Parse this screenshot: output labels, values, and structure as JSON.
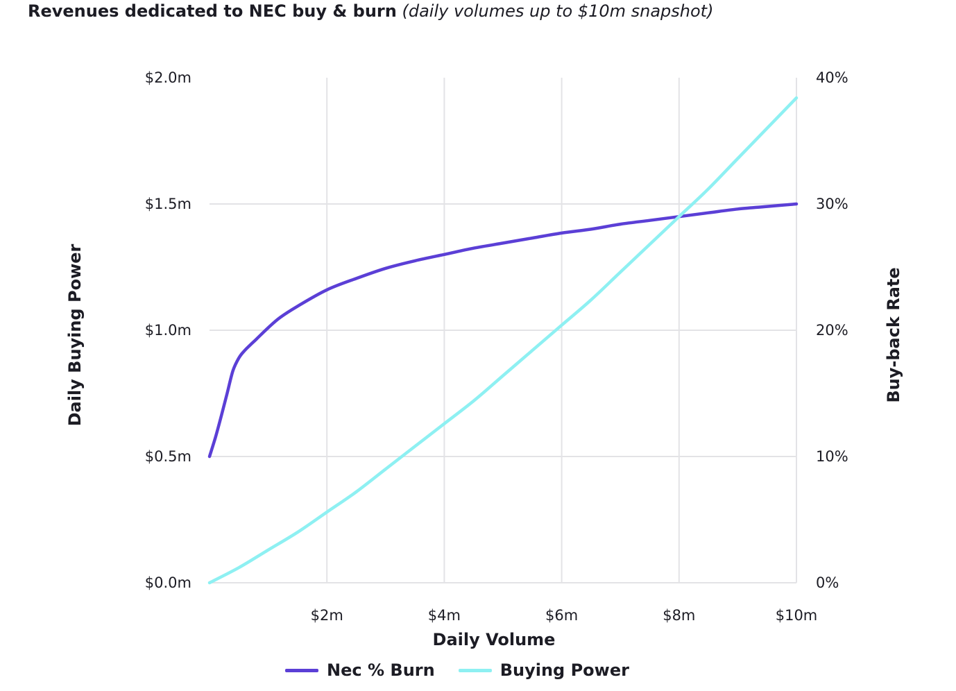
{
  "title": "Revenues dedicated to NEC buy & burn",
  "subtitle": "(daily volumes up to $10m snapshot)",
  "colors": {
    "nec_burn": "#5b3fd6",
    "buying_power": "#8ef0f2",
    "grid": "#e3e3e6"
  },
  "chart_data": {
    "type": "line",
    "xlabel": "Daily Volume",
    "ylabel": "Daily Buying Power",
    "y2label": "Buy-back Rate",
    "x_ticks": [
      "$2m",
      "$4m",
      "$6m",
      "$8m",
      "$10m"
    ],
    "y_ticks": [
      "$0.0m",
      "$0.5m",
      "$1.0m",
      "$1.5m",
      "$2.0m"
    ],
    "y2_ticks": [
      "0%",
      "10%",
      "20%",
      "30%",
      "40%"
    ],
    "xlim": [
      0,
      10
    ],
    "ylim": [
      0,
      2.0
    ],
    "y2lim": [
      0,
      40
    ],
    "grid": true,
    "legend": "bottom",
    "series": [
      {
        "name": "Nec % Burn",
        "axis": "right",
        "unit": "%",
        "x": [
          0.0,
          0.1,
          0.2,
          0.3,
          0.4,
          0.5,
          0.6,
          0.8,
          1.0,
          1.2,
          1.5,
          2.0,
          2.5,
          3.0,
          3.5,
          4.0,
          4.5,
          5.0,
          5.5,
          6.0,
          6.5,
          7.0,
          7.5,
          8.0,
          8.5,
          9.0,
          9.5,
          10.0
        ],
        "y": [
          10.0,
          11.5,
          13.2,
          15.0,
          16.8,
          17.8,
          18.4,
          19.3,
          20.2,
          21.0,
          21.9,
          23.2,
          24.1,
          24.9,
          25.5,
          26.0,
          26.5,
          26.9,
          27.3,
          27.7,
          28.0,
          28.4,
          28.7,
          29.0,
          29.3,
          29.6,
          29.8,
          30.0
        ]
      },
      {
        "name": "Buying Power",
        "axis": "left",
        "unit": "$m",
        "x": [
          0.0,
          0.5,
          1.0,
          1.5,
          2.0,
          2.5,
          3.0,
          3.5,
          4.0,
          4.5,
          5.0,
          5.5,
          6.0,
          6.5,
          7.0,
          7.5,
          8.0,
          8.5,
          9.0,
          9.5,
          10.0
        ],
        "y": [
          0.0,
          0.06,
          0.13,
          0.2,
          0.28,
          0.36,
          0.45,
          0.54,
          0.63,
          0.72,
          0.82,
          0.92,
          1.02,
          1.12,
          1.23,
          1.34,
          1.45,
          1.56,
          1.68,
          1.8,
          1.92
        ]
      }
    ]
  }
}
